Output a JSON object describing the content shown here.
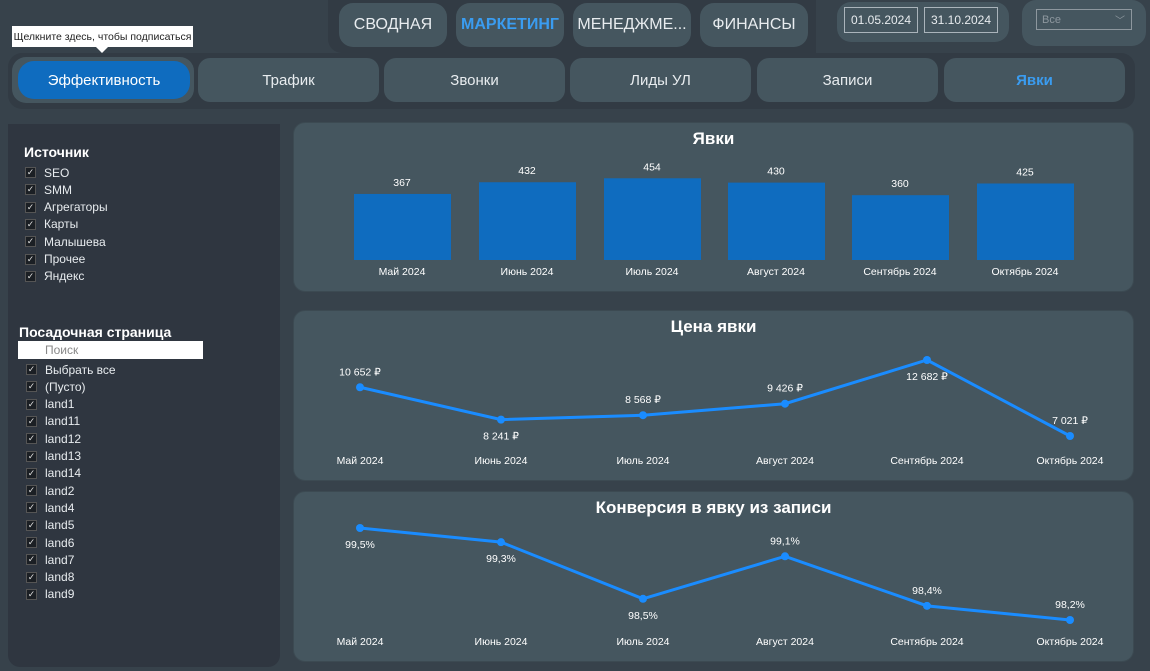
{
  "top_tabs": [
    {
      "label": "СВОДНАЯ"
    },
    {
      "label": "МАРКЕТИНГ",
      "active": true
    },
    {
      "label": "МЕНЕДЖМЕ..."
    },
    {
      "label": "ФИНАНСЫ"
    }
  ],
  "date_range": {
    "from": "01.05.2024",
    "to": "31.10.2024"
  },
  "dropdown": {
    "value": "Все",
    "icon": "chevron-down-icon"
  },
  "tooltip": "Щелкните здесь, чтобы подписаться",
  "sub_tabs": [
    {
      "label": "Эффективность",
      "active": true
    },
    {
      "label": "Трафик"
    },
    {
      "label": "Звонки"
    },
    {
      "label": "Лиды УЛ"
    },
    {
      "label": "Записи"
    },
    {
      "label": "Явки",
      "selected": true
    }
  ],
  "sidebar": {
    "source": {
      "title": "Источник",
      "items": [
        "SEO",
        "SMM",
        "Агрегаторы",
        "Карты",
        "Малышева",
        "Прочее",
        "Яндекс"
      ]
    },
    "landing": {
      "title": "Посадочная страница",
      "search_placeholder": "Поиск",
      "items": [
        "Выбрать все",
        "(Пусто)",
        "land1",
        "land11",
        "land12",
        "land13",
        "land14",
        "land2",
        "land4",
        "land5",
        "land6",
        "land7",
        "land8",
        "land9"
      ]
    }
  },
  "colors": {
    "bar": "#0f6cbf",
    "line": "#1a8cff",
    "card": "#45565f",
    "active_tab": "#0f6cbf",
    "accent_text": "#3a9cf0"
  },
  "chart_data": [
    {
      "type": "bar",
      "title": "Явки",
      "categories": [
        "Май 2024",
        "Июнь 2024",
        "Июль 2024",
        "Август 2024",
        "Сентябрь 2024",
        "Октябрь 2024"
      ],
      "values": [
        367,
        432,
        454,
        430,
        360,
        425
      ],
      "labels": [
        "367",
        "432",
        "454",
        "430",
        "360",
        "425"
      ]
    },
    {
      "type": "line",
      "title": "Цена явки",
      "categories": [
        "Май 2024",
        "Июнь 2024",
        "Июль 2024",
        "Август 2024",
        "Сентябрь 2024",
        "Октябрь 2024"
      ],
      "values": [
        10652,
        8241,
        8568,
        9426,
        12682,
        7021
      ],
      "labels": [
        "10 652 ₽",
        "8 241 ₽",
        "8 568 ₽",
        "9 426 ₽",
        "12 682 ₽",
        "7 021 ₽"
      ]
    },
    {
      "type": "line",
      "title": "Конверсия в явку из записи",
      "categories": [
        "Май 2024",
        "Июнь 2024",
        "Июль 2024",
        "Август 2024",
        "Сентябрь 2024",
        "Октябрь 2024"
      ],
      "values": [
        99.5,
        99.3,
        98.5,
        99.1,
        98.4,
        98.2
      ],
      "labels": [
        "99,5%",
        "99,3%",
        "98,5%",
        "99,1%",
        "98,4%",
        "98,2%"
      ]
    }
  ]
}
